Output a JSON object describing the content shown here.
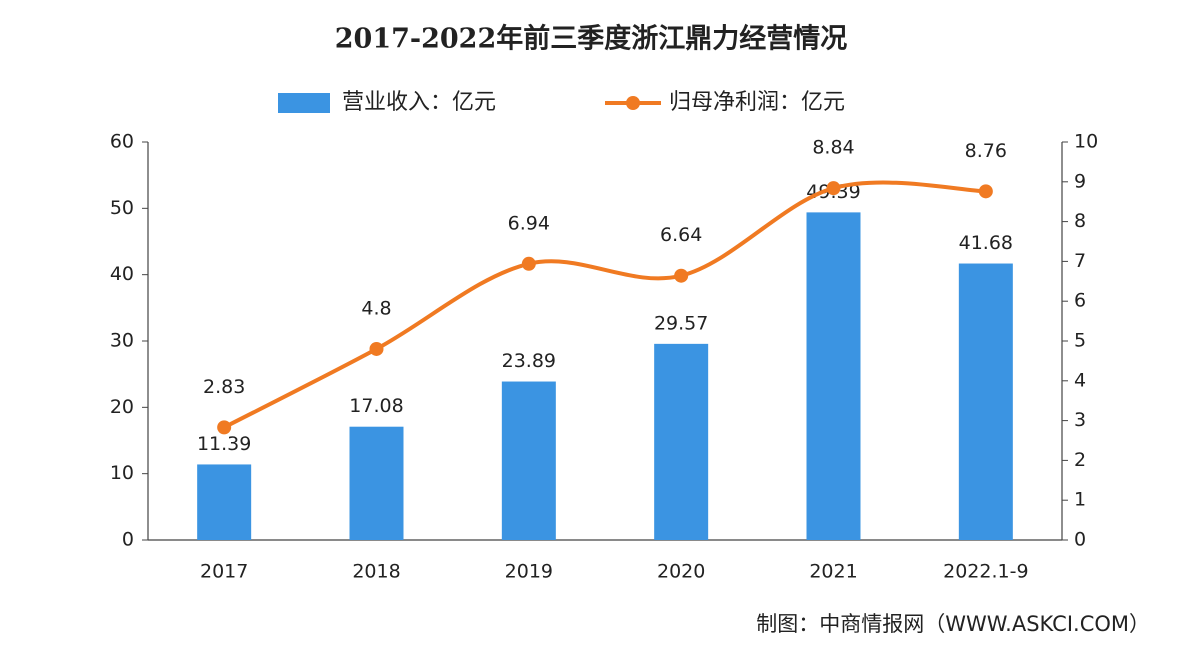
{
  "chart_data": {
    "type": "combo",
    "title": "2017-2022年前三季度浙江鼎力经营情况",
    "categories": [
      "2017",
      "2018",
      "2019",
      "2020",
      "2021",
      "2022.1-9"
    ],
    "series": [
      {
        "name": "营业收入：亿元",
        "type": "bar",
        "color": "#3b94e2",
        "values": [
          11.39,
          17.08,
          23.89,
          29.57,
          49.39,
          41.68
        ]
      },
      {
        "name": "归母净利润：亿元",
        "type": "line",
        "axis": "y2",
        "color": "#f07a22",
        "values": [
          2.83,
          4.8,
          6.94,
          6.64,
          8.84,
          8.76
        ]
      }
    ],
    "ylim": [
      0,
      60
    ],
    "yticks": [
      0,
      10,
      20,
      30,
      40,
      50,
      60
    ],
    "y2lim": [
      0,
      10
    ],
    "y2ticks": [
      0,
      1,
      2,
      3,
      4,
      5,
      6,
      7,
      8,
      9,
      10
    ],
    "source": "制图：中商情报网（WWW.ASKCI.COM）"
  }
}
